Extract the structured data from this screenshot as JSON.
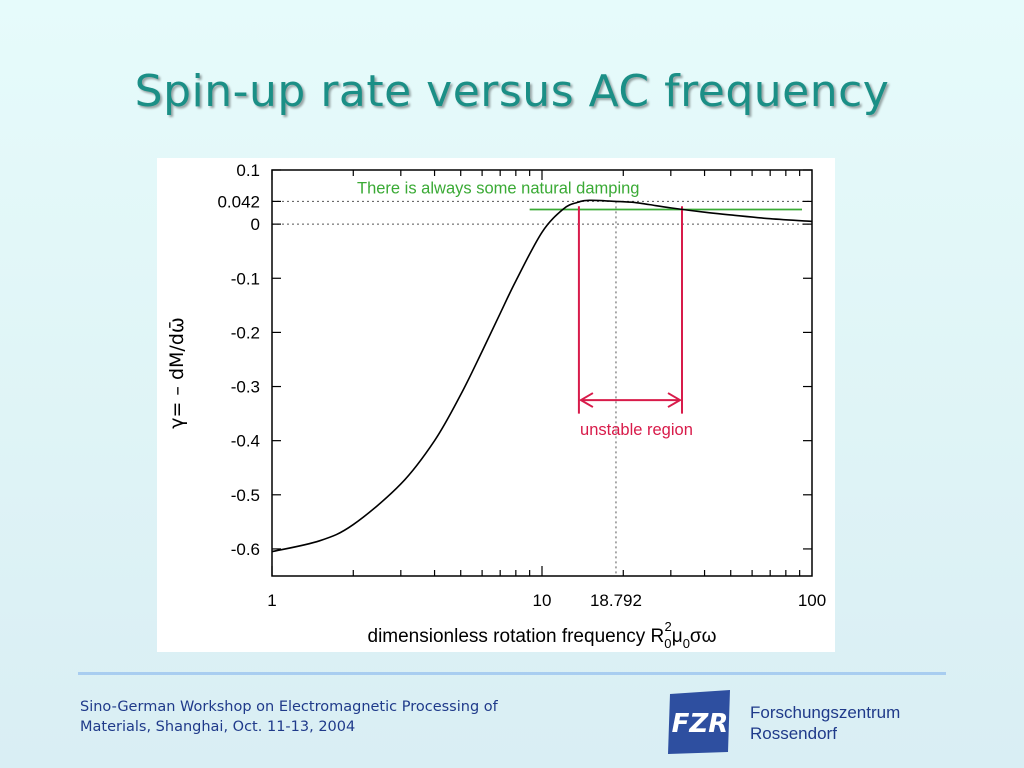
{
  "slide": {
    "title": "Spin-up rate versus AC frequency",
    "footer_left_line1": "Sino-German Workshop on Electromagnetic Processing of",
    "footer_left_line2": "Materials, Shanghai, Oct. 11-13, 2004",
    "footer_right_line1": "Forschungszentrum",
    "footer_right_line2": "Rossendorf",
    "logo_text": "FZR",
    "colors": {
      "title": "#1b8f86",
      "footer_text": "#1f3a8a",
      "divider": "#a8cdf0",
      "logo": "#2e4fa0"
    }
  },
  "chart_data": {
    "type": "line",
    "x_scale": "log",
    "xlim": [
      1,
      100
    ],
    "ylim": [
      -0.65,
      0.1
    ],
    "xlabel_prefix": "dimensionless rotation frequency R",
    "xlabel_sup": "2",
    "xlabel_sub": "0",
    "xlabel_mid": "μ",
    "xlabel_sub2": "0",
    "xlabel_suffix": "σω",
    "ylabel": "γ= – dM/dω̄",
    "x_ticks": [
      1,
      10,
      18.792,
      100
    ],
    "x_tick_labels": [
      "1",
      "10",
      "18.792",
      "100"
    ],
    "y_ticks": [
      0.1,
      0.042,
      0,
      -0.1,
      -0.2,
      -0.3,
      -0.4,
      -0.5,
      -0.6
    ],
    "y_tick_labels": [
      "0.1",
      "0.042",
      "0",
      "-0.1",
      "-0.2",
      "-0.3",
      "-0.4",
      "-0.5",
      "-0.6"
    ],
    "series": [
      {
        "color": "#000000",
        "x": [
          1,
          1.5,
          2,
          3,
          4,
          5,
          6,
          7,
          8,
          10,
          12,
          13.5,
          15,
          18.792,
          22,
          25,
          30,
          40,
          50,
          70,
          100
        ],
        "y": [
          -0.605,
          -0.585,
          -0.555,
          -0.48,
          -0.4,
          -0.315,
          -0.235,
          -0.165,
          -0.105,
          -0.015,
          0.028,
          0.04,
          0.044,
          0.042,
          0.04,
          0.036,
          0.03,
          0.022,
          0.017,
          0.01,
          0.005
        ]
      }
    ],
    "reference_lines": {
      "y_dotted": [
        0.042,
        0
      ],
      "x_dotted": 18.792
    },
    "annotations": {
      "damping_text": "There is always some natural damping",
      "damping_color": "#3aaa35",
      "damping_line_y": 0.027,
      "damping_line_x": [
        9,
        100
      ],
      "unstable_text": "unstable region",
      "unstable_color": "#d81b4a",
      "unstable_x": [
        13.7,
        33
      ],
      "unstable_arrow_y": -0.325
    },
    "grid": false
  }
}
